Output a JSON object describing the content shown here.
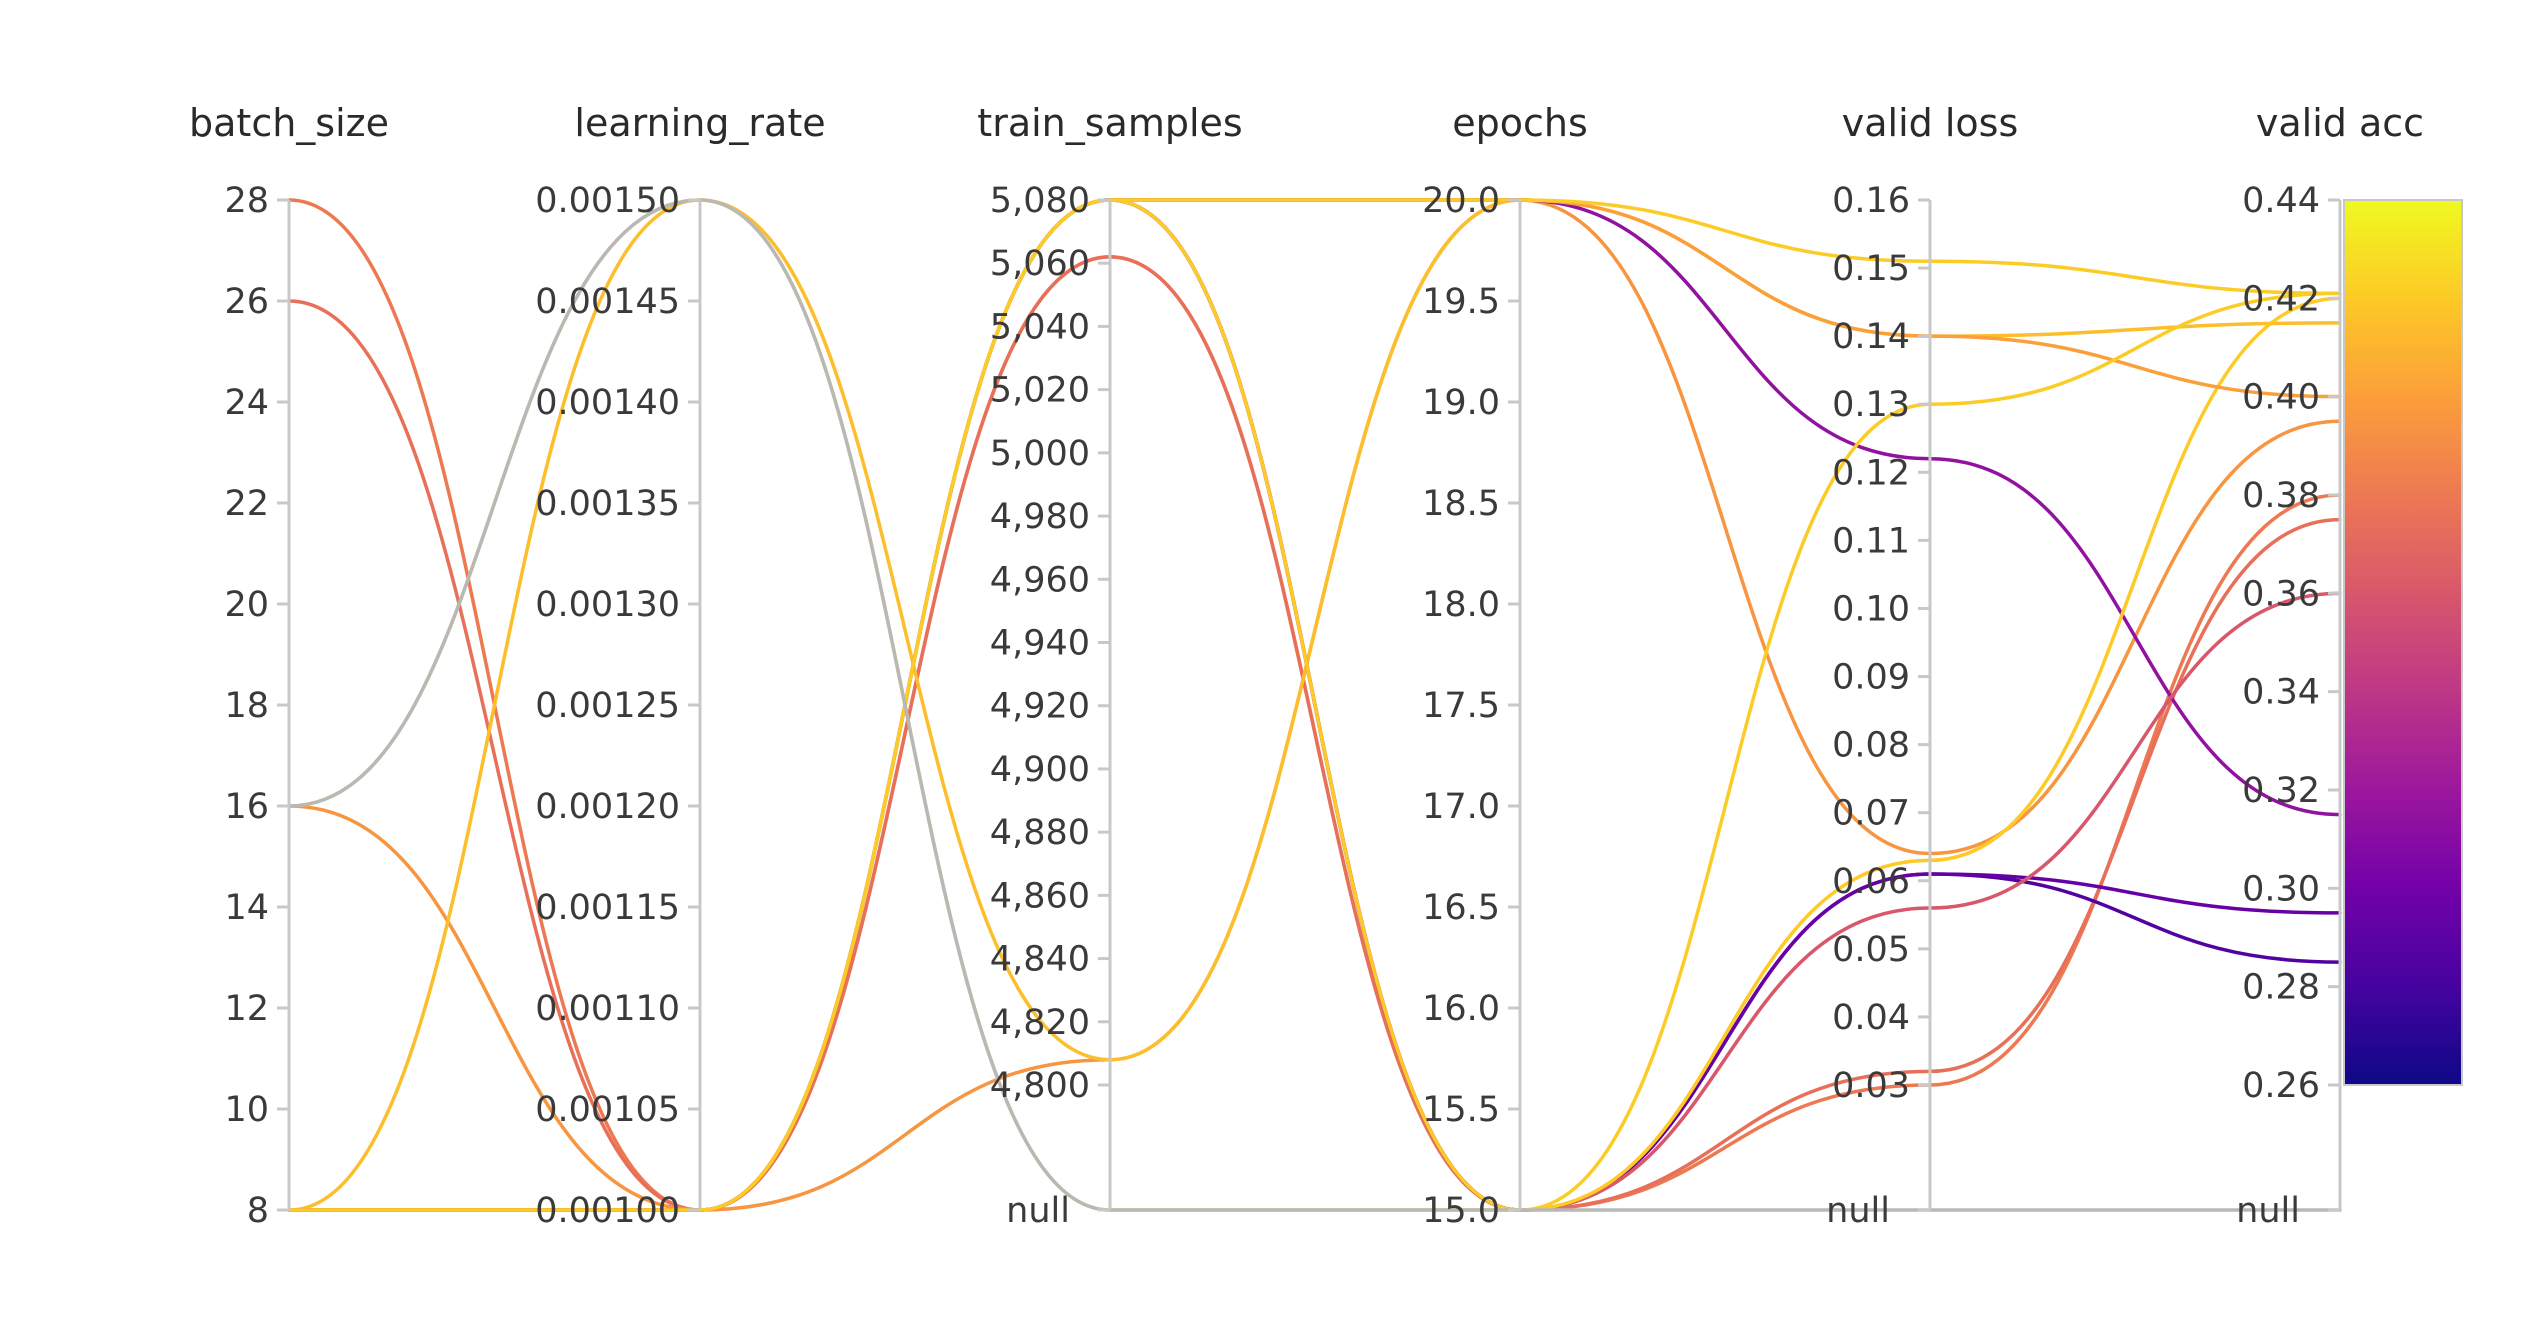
{
  "chart_data": {
    "type": "parallel-coordinates",
    "axes": [
      {
        "key": "batch_size",
        "label": "batch_size",
        "range": [
          8,
          28
        ],
        "ticks": [
          8,
          10,
          12,
          14,
          16,
          18,
          20,
          22,
          24,
          26,
          28
        ],
        "tick_labels": [
          "8",
          "10",
          "12",
          "14",
          "16",
          "18",
          "20",
          "22",
          "24",
          "26",
          "28"
        ],
        "has_null": false
      },
      {
        "key": "learning_rate",
        "label": "learning_rate",
        "range": [
          0.001,
          0.0015
        ],
        "ticks": [
          0.001,
          0.00105,
          0.0011,
          0.00115,
          0.0012,
          0.00125,
          0.0013,
          0.00135,
          0.0014,
          0.00145,
          0.0015
        ],
        "tick_labels": [
          "0.00100",
          "0.00105",
          "0.00110",
          "0.00115",
          "0.00120",
          "0.00125",
          "0.00130",
          "0.00135",
          "0.00140",
          "0.00145",
          "0.00150"
        ],
        "has_null": false
      },
      {
        "key": "train_samples",
        "label": "train_samples",
        "range": [
          4800,
          5080
        ],
        "ticks": [
          4800,
          4820,
          4840,
          4860,
          4880,
          4900,
          4920,
          4940,
          4960,
          4980,
          5000,
          5020,
          5040,
          5060,
          5080
        ],
        "tick_labels": [
          "4,800",
          "4,820",
          "4,840",
          "4,860",
          "4,880",
          "4,900",
          "4,920",
          "4,940",
          "4,960",
          "4,980",
          "5,000",
          "5,020",
          "5,040",
          "5,060",
          "5,080"
        ],
        "has_null": true,
        "null_label": "null"
      },
      {
        "key": "epochs",
        "label": "epochs",
        "range": [
          15,
          20
        ],
        "ticks": [
          15,
          15.5,
          16,
          16.5,
          17,
          17.5,
          18,
          18.5,
          19,
          19.5,
          20
        ],
        "tick_labels": [
          "15.0",
          "15.5",
          "16.0",
          "16.5",
          "17.0",
          "17.5",
          "18.0",
          "18.5",
          "19.0",
          "19.5",
          "20.0"
        ],
        "has_null": false
      },
      {
        "key": "valid_loss",
        "label": "valid loss",
        "range": [
          0.03,
          0.16
        ],
        "ticks": [
          0.03,
          0.04,
          0.05,
          0.06,
          0.07,
          0.08,
          0.09,
          0.1,
          0.11,
          0.12,
          0.13,
          0.14,
          0.15,
          0.16
        ],
        "tick_labels": [
          "0.03",
          "0.04",
          "0.05",
          "0.06",
          "0.07",
          "0.08",
          "0.09",
          "0.10",
          "0.11",
          "0.12",
          "0.13",
          "0.14",
          "0.15",
          "0.16"
        ],
        "has_null": true,
        "null_label": "null"
      },
      {
        "key": "valid_acc",
        "label": "valid acc",
        "range": [
          0.26,
          0.44
        ],
        "ticks": [
          0.26,
          0.28,
          0.3,
          0.32,
          0.34,
          0.36,
          0.38,
          0.4,
          0.42,
          0.44
        ],
        "tick_labels": [
          "0.26",
          "0.28",
          "0.30",
          "0.32",
          "0.34",
          "0.36",
          "0.38",
          "0.40",
          "0.42",
          "0.44"
        ],
        "has_null": true,
        "null_label": "null"
      }
    ],
    "color_by": "valid_acc",
    "colorscale": {
      "range": [
        0.26,
        0.44
      ],
      "stops": [
        [
          0.0,
          "#0d0887"
        ],
        [
          0.111,
          "#46039f"
        ],
        [
          0.222,
          "#7201a8"
        ],
        [
          0.333,
          "#9c179e"
        ],
        [
          0.444,
          "#bd3786"
        ],
        [
          0.556,
          "#d8576b"
        ],
        [
          0.667,
          "#ed7953"
        ],
        [
          0.778,
          "#fb9f3a"
        ],
        [
          0.889,
          "#fdca26"
        ],
        [
          1.0,
          "#f0f921"
        ]
      ]
    },
    "null_color": "#b8b8b8",
    "runs": [
      {
        "batch_size": 28,
        "learning_rate": 0.001,
        "train_samples": 5062,
        "epochs": 15,
        "valid_loss": 0.03,
        "valid_acc": 0.38
      },
      {
        "batch_size": 26,
        "learning_rate": 0.001,
        "train_samples": 5062,
        "epochs": 15,
        "valid_loss": 0.032,
        "valid_acc": 0.375
      },
      {
        "batch_size": 16,
        "learning_rate": 0.001,
        "train_samples": 4808,
        "epochs": 20,
        "valid_loss": 0.064,
        "valid_acc": 0.395
      },
      {
        "batch_size": 8,
        "learning_rate": 0.0015,
        "train_samples": 4808,
        "epochs": 20,
        "valid_loss": 0.14,
        "valid_acc": 0.415
      },
      {
        "batch_size": 8,
        "learning_rate": 0.001,
        "train_samples": 5080,
        "epochs": 20,
        "valid_loss": 0.122,
        "valid_acc": 0.315
      },
      {
        "batch_size": 8,
        "learning_rate": 0.001,
        "train_samples": 5080,
        "epochs": 15,
        "valid_loss": 0.061,
        "valid_acc": 0.285
      },
      {
        "batch_size": 8,
        "learning_rate": 0.001,
        "train_samples": 5080,
        "epochs": 15,
        "valid_loss": 0.061,
        "valid_acc": 0.295
      },
      {
        "batch_size": 8,
        "learning_rate": 0.001,
        "train_samples": 5080,
        "epochs": 15,
        "valid_loss": 0.056,
        "valid_acc": 0.36
      },
      {
        "batch_size": 8,
        "learning_rate": 0.001,
        "train_samples": 5080,
        "epochs": 15,
        "valid_loss": 0.063,
        "valid_acc": 0.42
      },
      {
        "batch_size": 8,
        "learning_rate": 0.001,
        "train_samples": 5080,
        "epochs": 20,
        "valid_loss": 0.14,
        "valid_acc": 0.4
      },
      {
        "batch_size": 8,
        "learning_rate": 0.001,
        "train_samples": 5080,
        "epochs": 20,
        "valid_loss": 0.151,
        "valid_acc": 0.421
      },
      {
        "batch_size": 16,
        "learning_rate": 0.0015,
        "train_samples": null,
        "epochs": 15,
        "valid_loss": 0.13,
        "valid_acc": 0.421
      },
      {
        "batch_size": 16,
        "learning_rate": 0.0015,
        "train_samples": null,
        "epochs": 15,
        "valid_loss": null,
        "valid_acc": null
      }
    ]
  }
}
